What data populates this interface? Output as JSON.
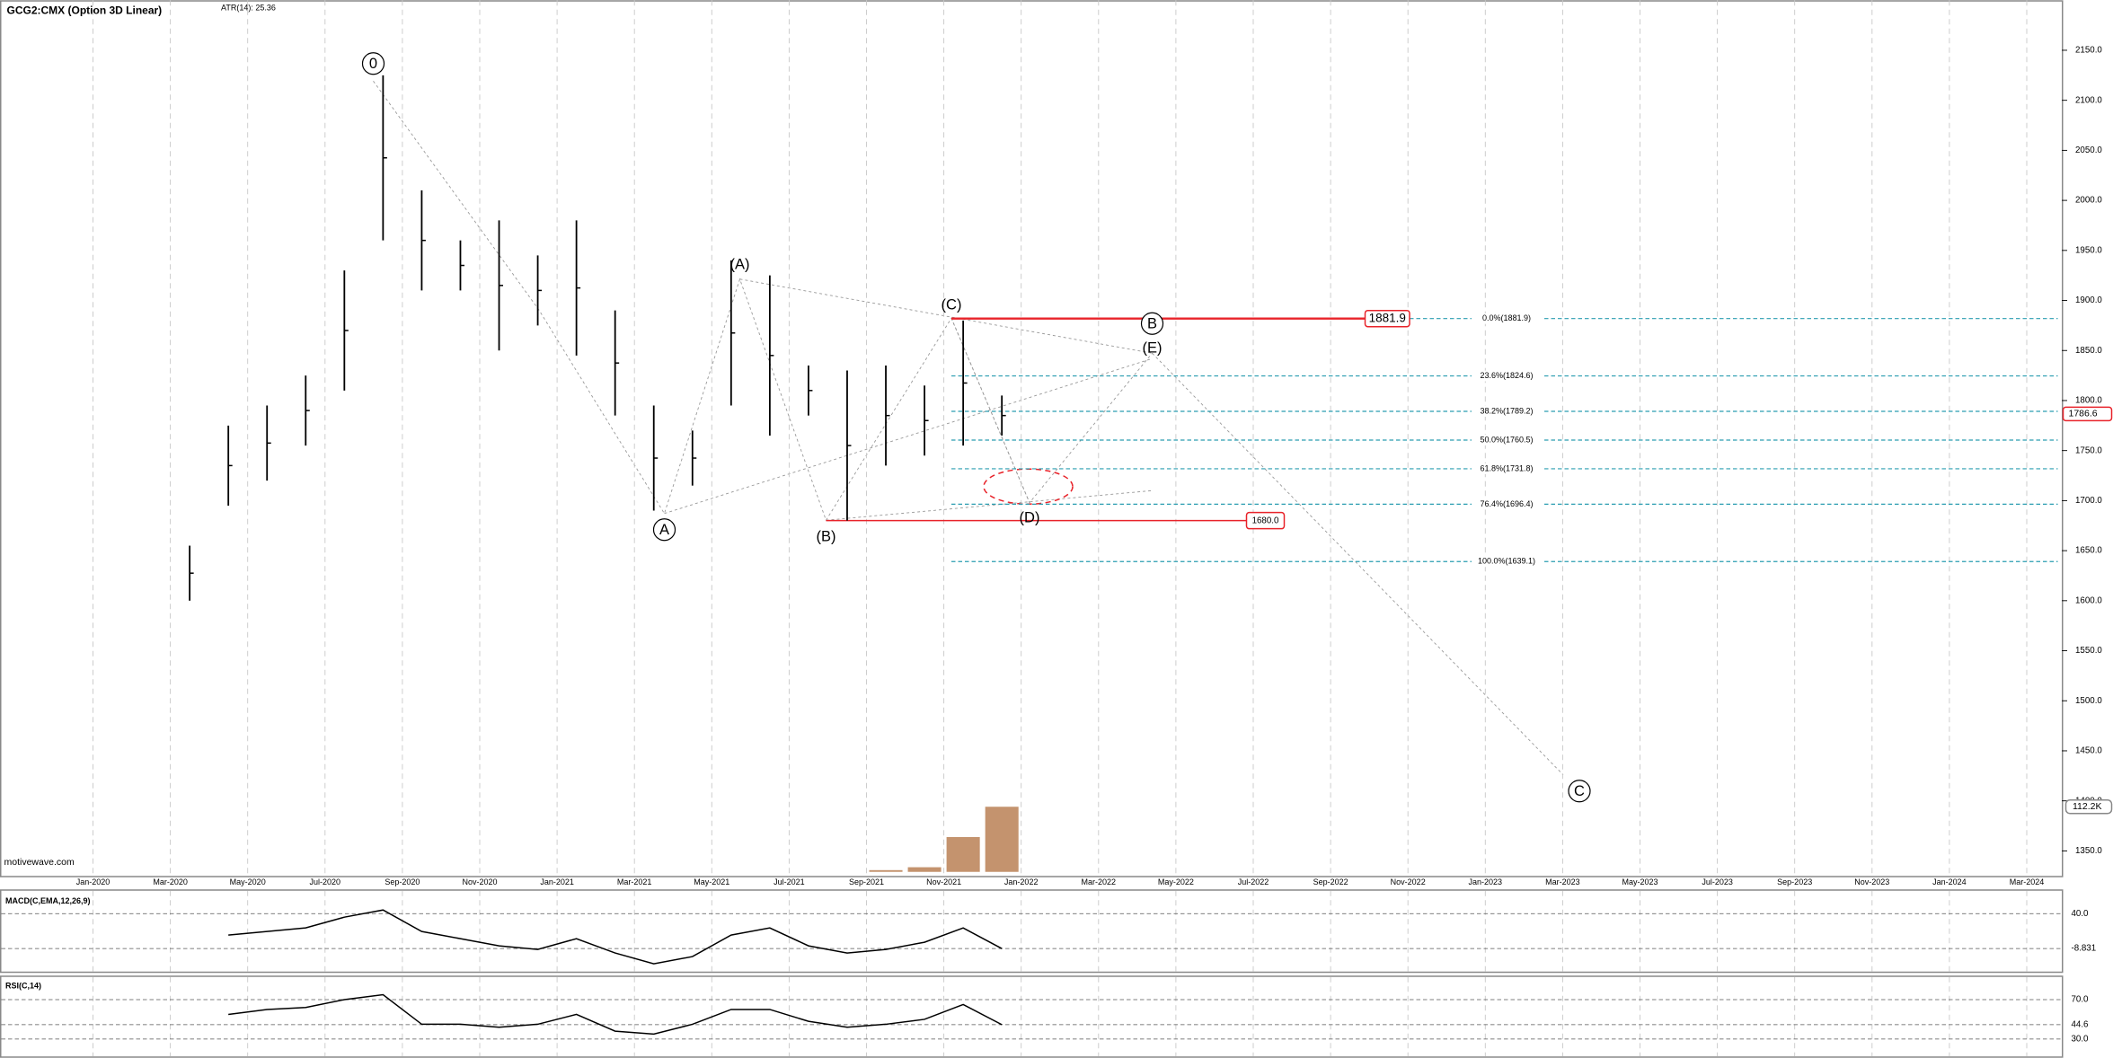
{
  "chart_data": {
    "type": "ohlc",
    "title": "GCG2:CMX (Option 3D Linear)",
    "subtitle": "ATR(14): 25.36",
    "watermark": "motivewave.com",
    "color": "#000000",
    "x": [
      "Mar-2020",
      "Apr-2020",
      "May-2020",
      "Jun-2020",
      "Jul-2020",
      "Aug-2020",
      "Sep-2020",
      "Oct-2020",
      "Nov-2020",
      "Dec-2020",
      "Jan-2021",
      "Feb-2021",
      "Mar-2021",
      "Apr-2021",
      "May-2021",
      "Jun-2021",
      "Jul-2021",
      "Aug-2021",
      "Sep-2021",
      "Oct-2021",
      "Nov-2021",
      "Dec-2021"
    ],
    "high": [
      1655,
      1775,
      1795,
      1825,
      1930,
      2125,
      2010,
      1960,
      1980,
      1945,
      1980,
      1890,
      1795,
      1770,
      1940,
      1925,
      1835,
      1830,
      1835,
      1815,
      1880,
      1805
    ],
    "low": [
      1600,
      1695,
      1720,
      1755,
      1810,
      1960,
      1910,
      1910,
      1850,
      1875,
      1845,
      1785,
      1690,
      1715,
      1795,
      1765,
      1785,
      1680,
      1735,
      1745,
      1755,
      1765
    ],
    "ylim": [
      1325,
      2200
    ],
    "yticks": [
      {
        "value": 1350,
        "label": "1350.0"
      },
      {
        "value": 1400,
        "label": "1400.0"
      },
      {
        "value": 1450,
        "label": "1450.0"
      },
      {
        "value": 1500,
        "label": "1500.0"
      },
      {
        "value": 1550,
        "label": "1550.0"
      },
      {
        "value": 1600,
        "label": "1600.0"
      },
      {
        "value": 1650,
        "label": "1650.0"
      },
      {
        "value": 1700,
        "label": "1700.0"
      },
      {
        "value": 1750,
        "label": "1750.0"
      },
      {
        "value": 1800,
        "label": "1800.0"
      },
      {
        "value": 1850,
        "label": "1850.0"
      },
      {
        "value": 1900,
        "label": "1900.0"
      },
      {
        "value": 1950,
        "label": "1950.0"
      },
      {
        "value": 2000,
        "label": "2000.0"
      },
      {
        "value": 2050,
        "label": "2050.0"
      },
      {
        "value": 2100,
        "label": "2100.0"
      },
      {
        "value": 2150,
        "label": "2150.0"
      }
    ],
    "xticks": [
      "Jan-2020",
      "Mar-2020",
      "May-2020",
      "Jul-2020",
      "Sep-2020",
      "Nov-2020",
      "Jan-2021",
      "Mar-2021",
      "May-2021",
      "Jul-2021",
      "Sep-2021",
      "Nov-2021",
      "Jan-2022",
      "Mar-2022",
      "May-2022",
      "Jul-2022",
      "Sep-2022",
      "Nov-2022",
      "Jan-2023",
      "Mar-2023",
      "May-2023",
      "Jul-2023",
      "Sep-2023",
      "Nov-2023",
      "Jan-2024",
      "Mar-2024"
    ],
    "grid": true,
    "last": {
      "value": 1786.6,
      "label": "1786.6"
    },
    "levels": [
      {
        "value": 1881.9,
        "label": "1881.9",
        "color": "#e8232a"
      },
      {
        "value": 1680,
        "label": "1680.0",
        "color": "#e8232a"
      }
    ],
    "fib": [
      {
        "value": 1881.9,
        "label": "0.0%(1881.9)"
      },
      {
        "value": 1824.6,
        "label": "23.6%(1824.6)"
      },
      {
        "value": 1789.2,
        "label": "38.2%(1789.2)"
      },
      {
        "value": 1760.5,
        "label": "50.0%(1760.5)"
      },
      {
        "value": 1731.8,
        "label": "61.8%(1731.8)"
      },
      {
        "value": 1696.4,
        "label": "76.4%(1696.4)"
      },
      {
        "value": 1639.1,
        "label": "100.0%(1639.1)"
      }
    ],
    "waves": [
      "0",
      "(A)",
      "(C)",
      "B",
      "(E)",
      "A",
      "(B)",
      "(D)",
      "C"
    ],
    "volume": {
      "x": [
        "Sep-2021",
        "Oct-2021",
        "Nov-2021",
        "Dec-2021"
      ],
      "values": [
        3000,
        8000,
        60000,
        112200
      ],
      "color": "#b5784a",
      "ylim": [
        0,
        130000
      ],
      "yticks": [
        {
          "value": 112200,
          "label": "112.2K"
        }
      ]
    },
    "macd": {
      "title": "MACD(C,EMA,12,26,9)",
      "color": "#000000",
      "x": [
        "Apr-2020",
        "May-2020",
        "Jun-2020",
        "Jul-2020",
        "Aug-2020",
        "Sep-2020",
        "Oct-2020",
        "Nov-2020",
        "Dec-2020",
        "Jan-2021",
        "Feb-2021",
        "Mar-2021",
        "Apr-2021",
        "May-2021",
        "Jun-2021",
        "Jul-2021",
        "Aug-2021",
        "Sep-2021",
        "Oct-2021",
        "Nov-2021",
        "Dec-2021"
      ],
      "values": [
        10,
        15,
        20,
        35,
        45,
        15,
        5,
        -5,
        -10,
        5,
        -15,
        -30,
        -20,
        10,
        20,
        -5,
        -15,
        -10,
        0,
        20,
        -8.831
      ],
      "ylim": [
        -39,
        70
      ],
      "yticks": [
        {
          "value": 40,
          "label": "40.0"
        },
        {
          "value": -8.831,
          "label": "-8.831"
        }
      ]
    },
    "rsi": {
      "title": "RSI(C,14)",
      "color": "#000000",
      "x": [
        "Apr-2020",
        "May-2020",
        "Jun-2020",
        "Jul-2020",
        "Aug-2020",
        "Sep-2020",
        "Oct-2020",
        "Nov-2020",
        "Dec-2020",
        "Jan-2021",
        "Feb-2021",
        "Mar-2021",
        "Apr-2021",
        "May-2021",
        "Jun-2021",
        "Jul-2021",
        "Aug-2021",
        "Sep-2021",
        "Oct-2021",
        "Nov-2021",
        "Dec-2021"
      ],
      "values": [
        55,
        60,
        62,
        70,
        75,
        45,
        45,
        42,
        45,
        55,
        38,
        35,
        45,
        60,
        60,
        48,
        42,
        45,
        50,
        65,
        44.6
      ],
      "ylim": [
        11,
        93
      ],
      "yticks": [
        {
          "value": 70,
          "label": "70.0"
        },
        {
          "value": 30,
          "label": "30.0"
        },
        {
          "value": 44.6,
          "label": "44.6"
        }
      ]
    }
  }
}
